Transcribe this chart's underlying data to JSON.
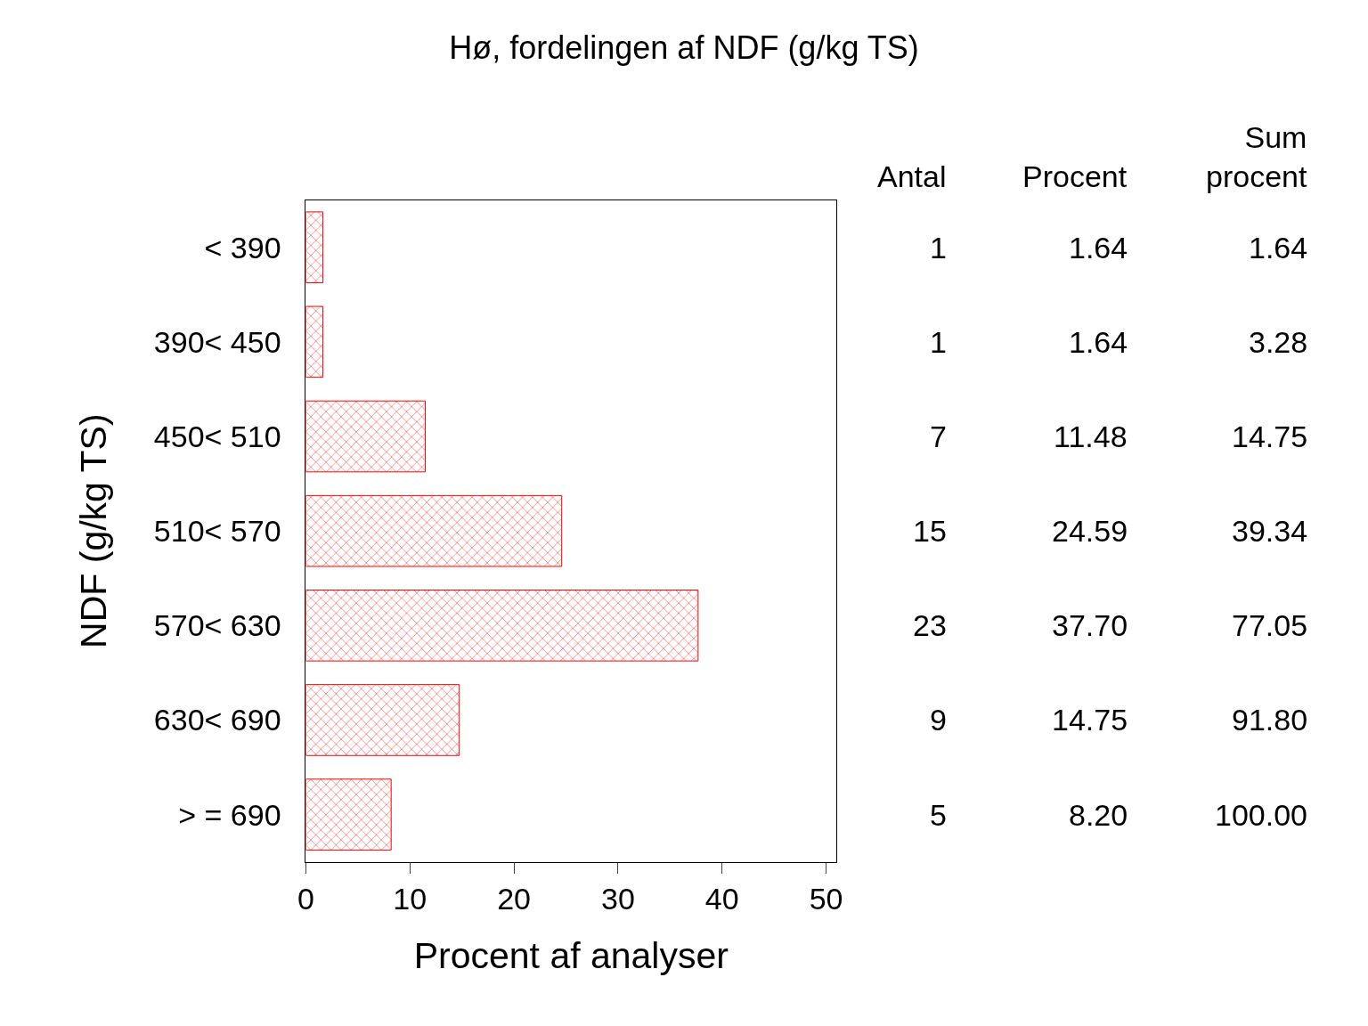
{
  "chart_data": [
    {
      "type": "bar",
      "orientation": "horizontal",
      "title": "Hø, fordelingen af NDF (g/kg TS)",
      "xlabel": "Procent af analyser",
      "ylabel": "NDF (g/kg TS)",
      "categories": [
        "< 390",
        "390< 450",
        "450< 510",
        "510< 570",
        "570< 630",
        "630< 690",
        "> = 690"
      ],
      "series": [
        {
          "color": "#ff0000",
          "values": [
            1.64,
            1.64,
            11.48,
            24.59,
            37.7,
            14.75,
            8.2
          ]
        }
      ],
      "xlim": [
        0,
        51
      ],
      "xticks": [
        0,
        10,
        20,
        30,
        40,
        50
      ],
      "legend": false
    },
    {
      "type": "other",
      "categories": [
        "Antal",
        "Procent",
        "Sum procent"
      ],
      "cell_labels": [
        [
          "1",
          "1.64",
          "1.64"
        ],
        [
          "1",
          "1.64",
          "3.28"
        ],
        [
          "7",
          "11.48",
          "14.75"
        ],
        [
          "15",
          "24.59",
          "39.34"
        ],
        [
          "23",
          "37.70",
          "77.05"
        ],
        [
          "9",
          "14.75",
          "91.80"
        ],
        [
          "5",
          "8.20",
          "100.00"
        ]
      ]
    }
  ]
}
